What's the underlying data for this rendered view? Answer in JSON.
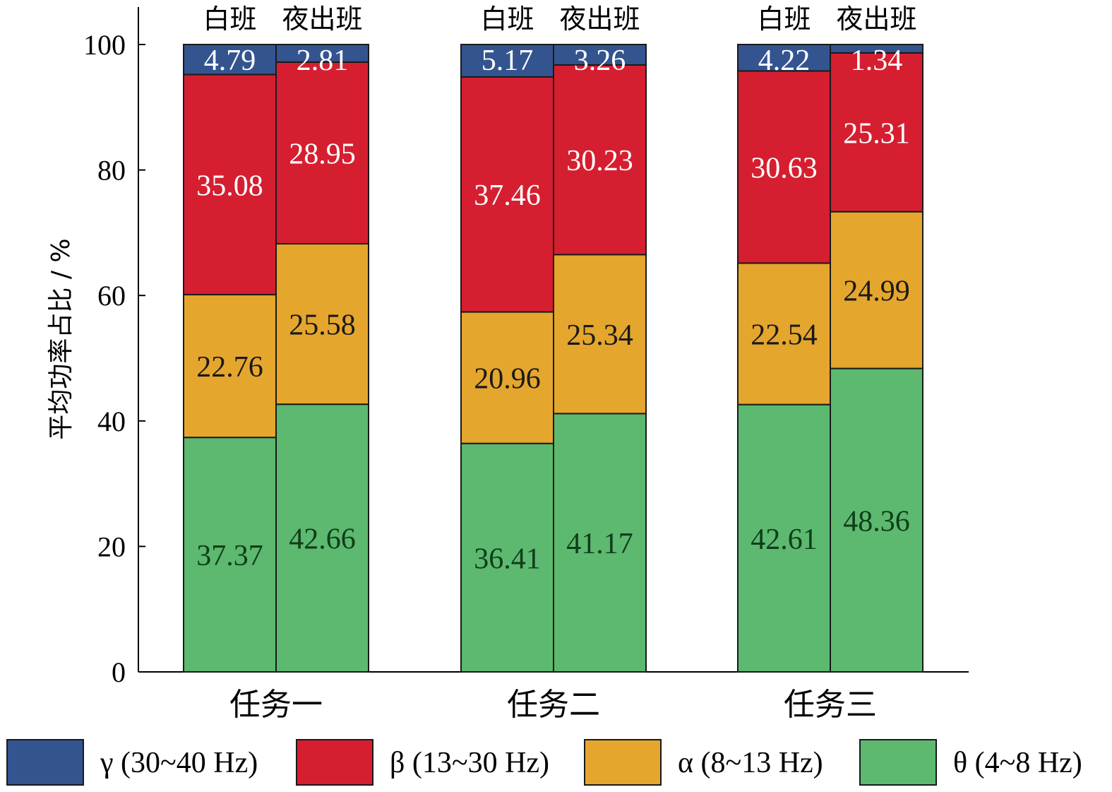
{
  "chart_data": {
    "type": "bar",
    "stacked": true,
    "ylabel": "平均功率占比 / %",
    "ylim": [
      0,
      100
    ],
    "yticks": [
      0,
      20,
      40,
      60,
      80,
      100
    ],
    "categories": [
      "任务一",
      "任务二",
      "任务三"
    ],
    "sub_groups": [
      "白班",
      "夜出班"
    ],
    "series": [
      {
        "name": "θ (4~8 Hz)",
        "color": "#5cb96f",
        "label_color": "#0f3d1a",
        "values": [
          [
            37.37,
            42.66
          ],
          [
            36.41,
            41.17
          ],
          [
            42.61,
            48.36
          ]
        ]
      },
      {
        "name": "α (8~13 Hz)",
        "color": "#e5a62d",
        "label_color": "#1a1a1a",
        "values": [
          [
            22.76,
            25.58
          ],
          [
            20.96,
            25.34
          ],
          [
            22.54,
            24.99
          ]
        ]
      },
      {
        "name": "β (13~30 Hz)",
        "color": "#d51f30",
        "label_color": "#ffffff",
        "values": [
          [
            35.08,
            28.95
          ],
          [
            37.46,
            30.23
          ],
          [
            30.63,
            25.31
          ]
        ]
      },
      {
        "name": "γ (30~40 Hz)",
        "color": "#34548f",
        "label_color": "#ffffff",
        "values": [
          [
            4.79,
            2.81
          ],
          [
            5.17,
            3.26
          ],
          [
            4.22,
            1.34
          ]
        ]
      }
    ],
    "legend_order": [
      "γ (30~40 Hz)",
      "β (13~30 Hz)",
      "α (8~13 Hz)",
      "θ (4~8 Hz)"
    ],
    "legend_position": "bottom"
  }
}
